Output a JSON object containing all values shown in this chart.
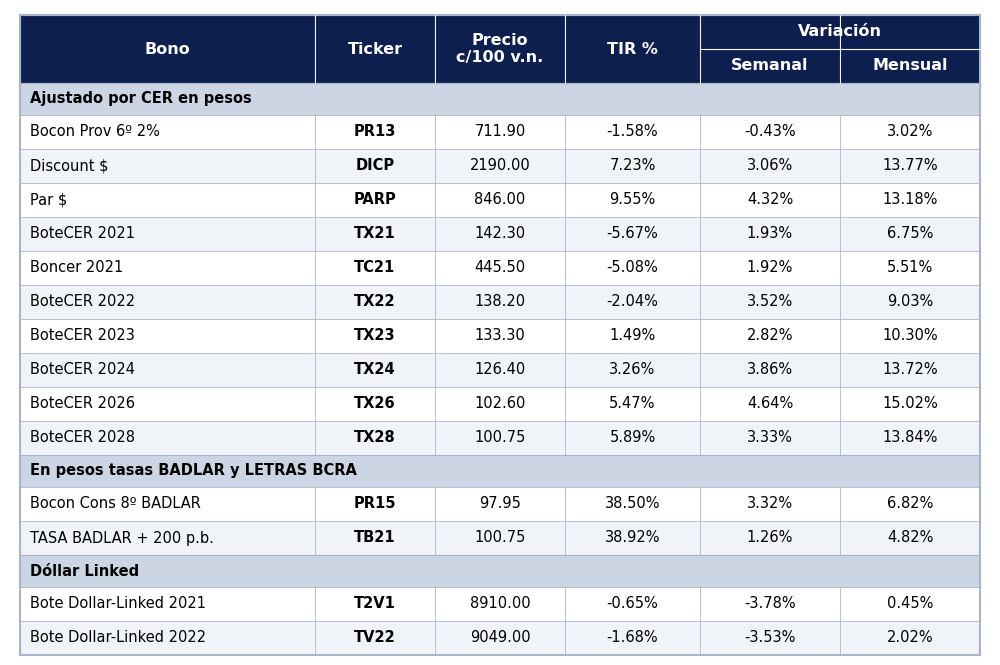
{
  "header_bg": "#0d1f4e",
  "header_text": "#ffffff",
  "subheader_bg": "#ccd5e3",
  "subheader_text": "#000000",
  "row_bg_even": "#ffffff",
  "row_bg_odd": "#f0f3f8",
  "border_color": "#aab4c8",
  "variacion_label": "Variación",
  "sections": [
    {
      "label": "Ajustado por CER en pesos",
      "rows": [
        [
          "Bocon Prov 6º 2%",
          "PR13",
          "711.90",
          "-1.58%",
          "-0.43%",
          "3.02%"
        ],
        [
          "Discount $",
          "DICP",
          "2190.00",
          "7.23%",
          "3.06%",
          "13.77%"
        ],
        [
          "Par $",
          "PARP",
          "846.00",
          "9.55%",
          "4.32%",
          "13.18%"
        ],
        [
          "BoteCER 2021",
          "TX21",
          "142.30",
          "-5.67%",
          "1.93%",
          "6.75%"
        ],
        [
          "Boncer 2021",
          "TC21",
          "445.50",
          "-5.08%",
          "1.92%",
          "5.51%"
        ],
        [
          "BoteCER 2022",
          "TX22",
          "138.20",
          "-2.04%",
          "3.52%",
          "9.03%"
        ],
        [
          "BoteCER 2023",
          "TX23",
          "133.30",
          "1.49%",
          "2.82%",
          "10.30%"
        ],
        [
          "BoteCER 2024",
          "TX24",
          "126.40",
          "3.26%",
          "3.86%",
          "13.72%"
        ],
        [
          "BoteCER 2026",
          "TX26",
          "102.60",
          "5.47%",
          "4.64%",
          "15.02%"
        ],
        [
          "BoteCER 2028",
          "TX28",
          "100.75",
          "5.89%",
          "3.33%",
          "13.84%"
        ]
      ]
    },
    {
      "label": "En pesos tasas BADLAR y LETRAS BCRA",
      "rows": [
        [
          "Bocon Cons 8º BADLAR",
          "PR15",
          "97.95",
          "38.50%",
          "3.32%",
          "6.82%"
        ],
        [
          "TASA BADLAR + 200 p.b.",
          "TB21",
          "100.75",
          "38.92%",
          "1.26%",
          "4.82%"
        ]
      ]
    },
    {
      "label": "Dóllar Linked",
      "rows": [
        [
          "Bote Dollar-Linked 2021",
          "T2V1",
          "8910.00",
          "-0.65%",
          "-3.78%",
          "0.45%"
        ],
        [
          "Bote Dollar-Linked 2022",
          "TV22",
          "9049.00",
          "-1.68%",
          "-3.53%",
          "2.02%"
        ]
      ]
    }
  ],
  "font_size_header": 11.5,
  "font_size_data": 10.5,
  "font_size_section": 10.5
}
